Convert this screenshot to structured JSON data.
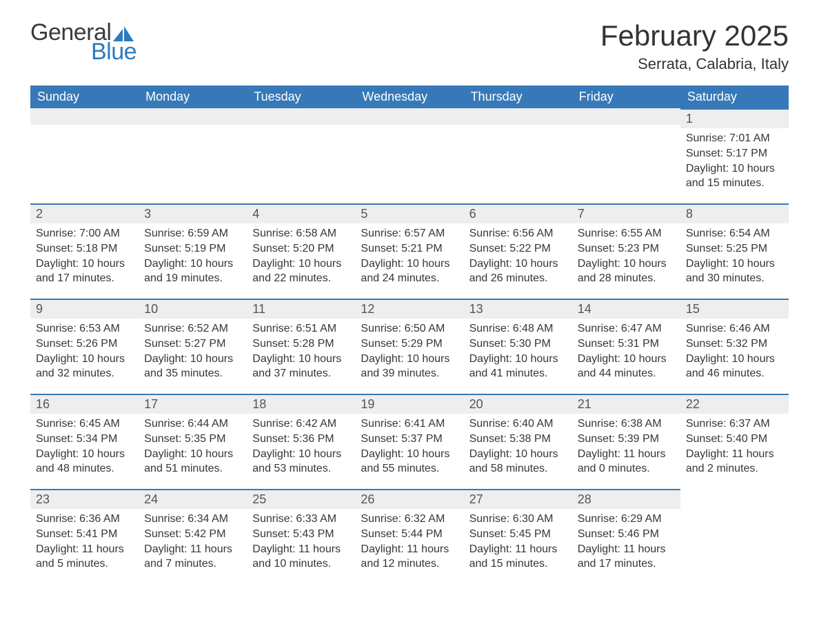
{
  "brand": {
    "part1": "General",
    "part2": "Blue",
    "sail_color": "#2b7bbf"
  },
  "title": {
    "month": "February 2025",
    "location": "Serrata, Calabria, Italy"
  },
  "colors": {
    "header_bg": "#3779b8",
    "header_text": "#ffffff",
    "daybar_bg": "#eeeeee",
    "daybar_border": "#3779b8",
    "body_text": "#363636",
    "page_bg": "#ffffff"
  },
  "weekdays": [
    "Sunday",
    "Monday",
    "Tuesday",
    "Wednesday",
    "Thursday",
    "Friday",
    "Saturday"
  ],
  "layout": {
    "first_weekday_index": 6,
    "days_in_month": 28,
    "weeks": 5
  },
  "days": {
    "1": {
      "sunrise": "7:01 AM",
      "sunset": "5:17 PM",
      "daylight": "10 hours and 15 minutes."
    },
    "2": {
      "sunrise": "7:00 AM",
      "sunset": "5:18 PM",
      "daylight": "10 hours and 17 minutes."
    },
    "3": {
      "sunrise": "6:59 AM",
      "sunset": "5:19 PM",
      "daylight": "10 hours and 19 minutes."
    },
    "4": {
      "sunrise": "6:58 AM",
      "sunset": "5:20 PM",
      "daylight": "10 hours and 22 minutes."
    },
    "5": {
      "sunrise": "6:57 AM",
      "sunset": "5:21 PM",
      "daylight": "10 hours and 24 minutes."
    },
    "6": {
      "sunrise": "6:56 AM",
      "sunset": "5:22 PM",
      "daylight": "10 hours and 26 minutes."
    },
    "7": {
      "sunrise": "6:55 AM",
      "sunset": "5:23 PM",
      "daylight": "10 hours and 28 minutes."
    },
    "8": {
      "sunrise": "6:54 AM",
      "sunset": "5:25 PM",
      "daylight": "10 hours and 30 minutes."
    },
    "9": {
      "sunrise": "6:53 AM",
      "sunset": "5:26 PM",
      "daylight": "10 hours and 32 minutes."
    },
    "10": {
      "sunrise": "6:52 AM",
      "sunset": "5:27 PM",
      "daylight": "10 hours and 35 minutes."
    },
    "11": {
      "sunrise": "6:51 AM",
      "sunset": "5:28 PM",
      "daylight": "10 hours and 37 minutes."
    },
    "12": {
      "sunrise": "6:50 AM",
      "sunset": "5:29 PM",
      "daylight": "10 hours and 39 minutes."
    },
    "13": {
      "sunrise": "6:48 AM",
      "sunset": "5:30 PM",
      "daylight": "10 hours and 41 minutes."
    },
    "14": {
      "sunrise": "6:47 AM",
      "sunset": "5:31 PM",
      "daylight": "10 hours and 44 minutes."
    },
    "15": {
      "sunrise": "6:46 AM",
      "sunset": "5:32 PM",
      "daylight": "10 hours and 46 minutes."
    },
    "16": {
      "sunrise": "6:45 AM",
      "sunset": "5:34 PM",
      "daylight": "10 hours and 48 minutes."
    },
    "17": {
      "sunrise": "6:44 AM",
      "sunset": "5:35 PM",
      "daylight": "10 hours and 51 minutes."
    },
    "18": {
      "sunrise": "6:42 AM",
      "sunset": "5:36 PM",
      "daylight": "10 hours and 53 minutes."
    },
    "19": {
      "sunrise": "6:41 AM",
      "sunset": "5:37 PM",
      "daylight": "10 hours and 55 minutes."
    },
    "20": {
      "sunrise": "6:40 AM",
      "sunset": "5:38 PM",
      "daylight": "10 hours and 58 minutes."
    },
    "21": {
      "sunrise": "6:38 AM",
      "sunset": "5:39 PM",
      "daylight": "11 hours and 0 minutes."
    },
    "22": {
      "sunrise": "6:37 AM",
      "sunset": "5:40 PM",
      "daylight": "11 hours and 2 minutes."
    },
    "23": {
      "sunrise": "6:36 AM",
      "sunset": "5:41 PM",
      "daylight": "11 hours and 5 minutes."
    },
    "24": {
      "sunrise": "6:34 AM",
      "sunset": "5:42 PM",
      "daylight": "11 hours and 7 minutes."
    },
    "25": {
      "sunrise": "6:33 AM",
      "sunset": "5:43 PM",
      "daylight": "11 hours and 10 minutes."
    },
    "26": {
      "sunrise": "6:32 AM",
      "sunset": "5:44 PM",
      "daylight": "11 hours and 12 minutes."
    },
    "27": {
      "sunrise": "6:30 AM",
      "sunset": "5:45 PM",
      "daylight": "11 hours and 15 minutes."
    },
    "28": {
      "sunrise": "6:29 AM",
      "sunset": "5:46 PM",
      "daylight": "11 hours and 17 minutes."
    }
  },
  "labels": {
    "sunrise": "Sunrise:",
    "sunset": "Sunset:",
    "daylight": "Daylight:"
  }
}
